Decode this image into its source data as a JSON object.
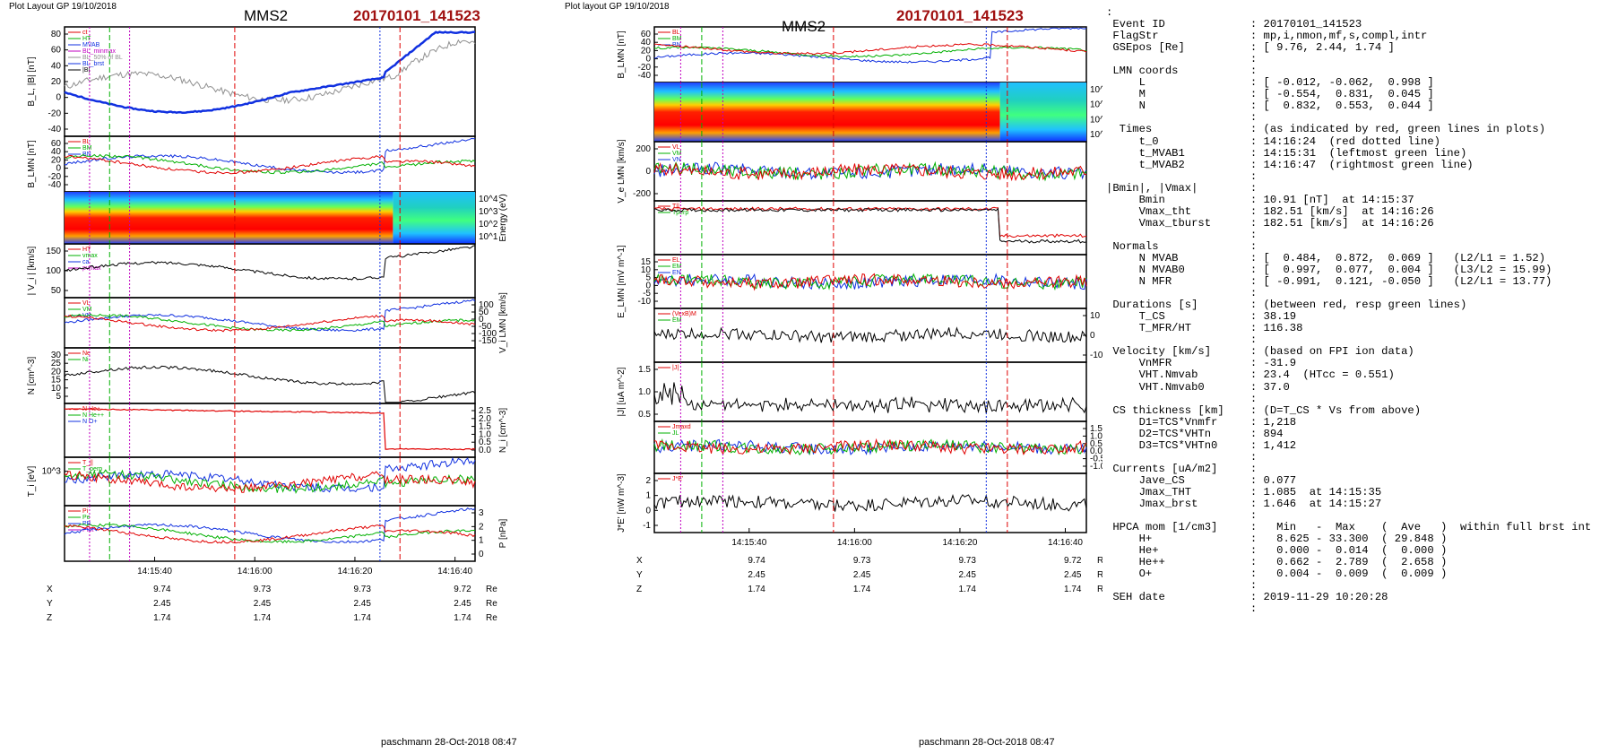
{
  "left": {
    "layout_label": "Plot Layout GP 19/10/2018",
    "spacecraft": "MMS2",
    "event": "20170101_141523",
    "footer": "paschmann 28-Oct-2018 08:47",
    "times": [
      "14:15:40",
      "14:16:00",
      "14:16:20",
      "14:16:40"
    ],
    "ephem": [
      {
        "label": "X",
        "values": [
          "9.74",
          "9.73",
          "9.73",
          "9.72"
        ],
        "unit": "Re"
      },
      {
        "label": "Y",
        "values": [
          "2.45",
          "2.45",
          "2.45",
          "2.45"
        ],
        "unit": "Re"
      },
      {
        "label": "Z",
        "values": [
          "1.74",
          "1.74",
          "1.74",
          "1.74"
        ],
        "unit": "Re"
      }
    ],
    "panels": [
      {
        "ylabel": "B_L, |B| [nT]",
        "ticks": [
          "80",
          "60",
          "40",
          "20",
          "0",
          "-20",
          "-40"
        ],
        "legend": [
          "ct",
          "HT",
          "MVAB",
          "BL_minmax",
          "BL_50% of BL",
          "BL_brst",
          "|B|"
        ]
      },
      {
        "ylabel": "B_LMN [nT]",
        "ticks": [
          "60",
          "40",
          "20",
          "0",
          "-20",
          "-40"
        ],
        "legend": [
          "BL",
          "BM",
          "BN"
        ]
      },
      {
        "ylabel": "Energy (eV)",
        "ticks": [
          "10^4",
          "10^3",
          "10^2",
          "10^1"
        ],
        "legend": []
      },
      {
        "ylabel": "| V_i | [km/s]",
        "ticks": [
          "150",
          "100",
          "50"
        ],
        "legend": [
          "HT",
          "vmax",
          "ca",
          "pvmax"
        ]
      },
      {
        "ylabel": "V_i LMN [km/s]",
        "ticks": [
          "100",
          "50",
          "0",
          "-50",
          "-100",
          "-150"
        ],
        "legend": [
          "VL",
          "VM",
          "VN"
        ]
      },
      {
        "ylabel": "N [cm^-3]",
        "ticks": [
          "30",
          "25",
          "20",
          "15",
          "10",
          "5"
        ],
        "legend": [
          "Ne",
          "Ni"
        ]
      },
      {
        "ylabel": "N_i [cm^-3]",
        "ticks": [
          "2.5",
          "2.0",
          "1.5",
          "1.0",
          "0.5",
          "0.0"
        ],
        "legend": [
          "N He+",
          "N He++",
          "N O+"
        ]
      },
      {
        "ylabel": "T_i [eV]",
        "ticks": [
          "10^3"
        ],
        "legend": [
          "T_||",
          "T_perp"
        ]
      },
      {
        "ylabel": "P [nPa]",
        "ticks": [
          "3",
          "2",
          "1",
          "0"
        ],
        "legend": [
          "Pi",
          "Pe",
          "PB",
          "Ptot"
        ]
      }
    ]
  },
  "middle": {
    "layout_label": "Plot layout GP 19/10/2018",
    "spacecraft": "MMS2",
    "event": "20170101_141523",
    "footer": "paschmann 28-Oct-2018 08:47",
    "times": [
      "14:15:40",
      "14:16:00",
      "14:16:20",
      "14:16:40"
    ],
    "ephem": [
      {
        "label": "X",
        "values": [
          "9.74",
          "9.73",
          "9.73",
          "9.72"
        ],
        "unit": "Re"
      },
      {
        "label": "Y",
        "values": [
          "2.45",
          "2.45",
          "2.45",
          "2.45"
        ],
        "unit": "Re"
      },
      {
        "label": "Z",
        "values": [
          "1.74",
          "1.74",
          "1.74",
          "1.74"
        ],
        "unit": "Re"
      }
    ],
    "panels": [
      {
        "ylabel": "B_LMN [nT]",
        "ticks": [
          "60",
          "40",
          "20",
          "0",
          "-20",
          "-40"
        ],
        "legend": [
          "BL",
          "BM",
          "BN"
        ]
      },
      {
        "ylabel": "Energy (eV)",
        "ticks": [
          "10^4",
          "10^3",
          "10^2",
          "10^1"
        ],
        "legend": []
      },
      {
        "ylabel": "V_e LMN [km/s]",
        "ticks": [
          "200",
          "0",
          "-200"
        ],
        "legend": [
          "VL",
          "VM",
          "VN"
        ]
      },
      {
        "ylabel": "T_e [eV]",
        "ticks": [],
        "legend": [
          "T||",
          "Tperp"
        ]
      },
      {
        "ylabel": "E_LMN [mV m^-1]",
        "ticks": [
          "15",
          "10",
          "5",
          "0",
          "-5",
          "-10"
        ],
        "legend": [
          "EL",
          "EM",
          "EN"
        ]
      },
      {
        "ylabel": "E_M [mW m^-2]",
        "ticks": [
          "10",
          "0",
          "-10"
        ],
        "legend": [
          "(VexB)M",
          "EM"
        ]
      },
      {
        "ylabel": "|J| [uA m^-2]",
        "ticks": [
          "1.5",
          "1.0",
          "0.5"
        ],
        "legend": [
          "|J|"
        ]
      },
      {
        "ylabel": "J [uA m^-2]",
        "ticks": [
          "1.5",
          "1.0",
          "0.5",
          "0.0",
          "-0.5",
          "-1.0"
        ],
        "legend": [
          "Jmaxd",
          "JL"
        ]
      },
      {
        "ylabel": "J*E' [nW m^-3]",
        "ticks": [
          "2",
          "1",
          "0",
          "-1"
        ],
        "legend": [
          "J*E'"
        ]
      }
    ]
  },
  "colors": {
    "red": "#e00000",
    "green": "#00b000",
    "blue": "#1030e0",
    "magenta": "#c000c0",
    "gray": "#909090",
    "black": "#000000"
  },
  "textpanel": {
    "lines": [
      ":",
      " Event ID             : 20170101_141523",
      " FlagStr              : mp,i,nmon,mf,s,compl,intr",
      " GSEpos [Re]          : [ 9.76, 2.44, 1.74 ]",
      "                      :",
      " LMN coords           :",
      "     L                : [ -0.012, -0.062,  0.998 ]",
      "     M                : [ -0.554,  0.831,  0.045 ]",
      "     N                : [  0.832,  0.553,  0.044 ]",
      "                      :",
      "  Times               : (as indicated by red, green lines in plots)",
      "     t_0              : 14:16:24  (red dotted line)",
      "     t_MVAB1          : 14:15:31  (leftmost green line)",
      "     t_MVAB2          : 14:16:47  (rightmost green line)",
      "                      :",
      "|Bmin|, |Vmax|        :",
      "     Bmin             : 10.91 [nT]  at 14:15:37",
      "     Vmax_tht         : 182.51 [km/s]  at 14:16:26",
      "     Vmax_tburst      : 182.51 [km/s]  at 14:16:26",
      "                      :",
      " Normals              :",
      "     N MVAB           : [  0.484,  0.872,  0.069 ]   (L2/L1 = 1.52)",
      "     N MVAB0          : [  0.997,  0.077,  0.004 ]   (L3/L2 = 15.99)",
      "     N MFR            : [ -0.991,  0.121, -0.050 ]   (L2/L1 = 13.77)",
      "                      :",
      " Durations [s]        : (between red, resp green lines)",
      "     T_CS             : 38.19",
      "     T_MFR/HT         : 116.38",
      "                      :",
      " Velocity [km/s]      : (based on FPI ion data)",
      "     VnMFR            : -31.9",
      "     VHT.Nmvab        : 23.4  (HTcc = 0.551)",
      "     VHT.Nmvab0       : 37.0",
      "                      :",
      " CS thickness [km]    : (D=T_CS * Vs from above)",
      "     D1=TCS*Vnmfr     : 1,218",
      "     D2=TCS*VHTn      : 894",
      "     D3=TCS*VHTn0     : 1,412",
      "                      :",
      " Currents [uA/m2]     :",
      "     Jave_CS          : 0.077",
      "     Jmax_THT         : 1.085  at 14:15:35",
      "     Jmax_brst        : 1.646  at 14:15:27",
      "                      :",
      " HPCA mom [1/cm3]     :   Min   -  Max    (  Ave   )  within full brst int",
      "     H+               :   8.625 - 33.300  ( 29.848 )",
      "     He+              :   0.000 -  0.014  (  0.000 )",
      "     He++             :   0.662 -  2.789  (  2.658 )",
      "     O+               :   0.004 -  0.009  (  0.009 )",
      "                      :",
      " SEH date             : 2019-11-29 10:20:28",
      "                      :"
    ]
  },
  "chart_data": [
    {
      "type": "line",
      "title": "MMS2 20170101_141523",
      "x_ticks": [
        "14:15:40",
        "14:16:00",
        "14:16:20",
        "14:16:40"
      ],
      "series": [
        {
          "name": "BL_brst",
          "panel": "B_L, |B| [nT]",
          "x": [
            "14:15:24",
            "14:15:28",
            "14:15:33",
            "14:15:38",
            "14:15:43",
            "14:15:47",
            "14:15:52",
            "14:16:00",
            "14:16:08",
            "14:16:14",
            "14:16:19",
            "14:16:24",
            "14:16:28",
            "14:16:33",
            "14:16:37",
            "14:16:42"
          ],
          "values": [
            2,
            9,
            5,
            -13,
            -30,
            -37,
            -27,
            -18,
            -15,
            -5,
            10,
            50,
            68,
            73,
            74,
            75
          ]
        },
        {
          "name": "|B|",
          "panel": "B_L, |B| [nT]",
          "x": [
            "14:15:24",
            "14:15:30",
            "14:15:36",
            "14:15:44",
            "14:15:52",
            "14:16:00",
            "14:16:08",
            "14:16:16",
            "14:16:22",
            "14:16:28",
            "14:16:35",
            "14:16:42"
          ],
          "values": [
            22,
            18,
            28,
            40,
            25,
            18,
            20,
            25,
            24,
            50,
            72,
            76
          ]
        },
        {
          "name": "|Vi|",
          "panel": "| V_i | [km/s]",
          "x": [
            "14:15:24",
            "14:15:32",
            "14:15:40",
            "14:15:48",
            "14:15:56",
            "14:16:04",
            "14:16:12",
            "14:16:20",
            "14:16:26",
            "14:16:30",
            "14:16:34",
            "14:16:42"
          ],
          "values": [
            110,
            95,
            105,
            100,
            75,
            60,
            85,
            110,
            180,
            75,
            55,
            50
          ]
        },
        {
          "name": "Ni",
          "panel": "N [cm^-3]",
          "x": [
            "14:15:24",
            "14:15:32",
            "14:15:40",
            "14:15:48",
            "14:15:56",
            "14:16:04",
            "14:16:12",
            "14:16:20",
            "14:16:26",
            "14:16:30",
            "14:16:36",
            "14:16:42"
          ],
          "values": [
            28,
            32,
            30,
            27,
            27,
            29,
            30,
            28,
            22,
            8,
            4,
            3
          ]
        },
        {
          "name": "N He++",
          "panel": "N_i [cm^-3]",
          "x": [
            "14:15:27",
            "14:15:45",
            "14:15:55",
            "14:16:05",
            "14:16:15",
            "14:16:26"
          ],
          "values": [
            2.75,
            2.3,
            2.45,
            2.35,
            2.45,
            0.65
          ]
        }
      ]
    }
  ]
}
